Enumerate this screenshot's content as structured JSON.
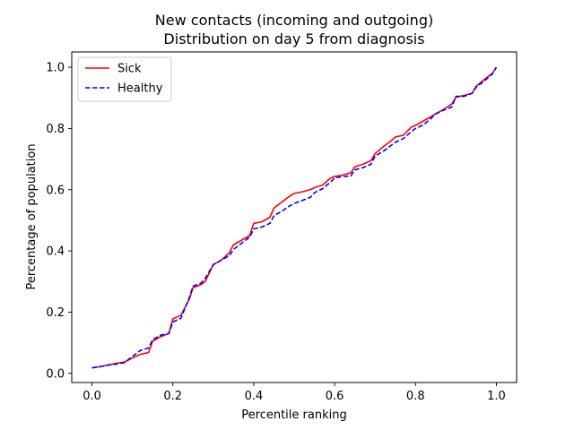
{
  "chart_data": {
    "type": "line",
    "title_line1": "New contacts (incoming and outgoing)",
    "title_line2": "Distribution on day 5 from diagnosis",
    "xlabel": "Percentile ranking",
    "ylabel": "Percentage of population",
    "xlim": [
      -0.05,
      1.05
    ],
    "ylim": [
      -0.03,
      1.05
    ],
    "xticks": [
      0.0,
      0.2,
      0.4,
      0.6,
      0.8,
      1.0
    ],
    "xtick_labels": [
      "0.0",
      "0.2",
      "0.4",
      "0.6",
      "0.8",
      "1.0"
    ],
    "yticks": [
      0.0,
      0.2,
      0.4,
      0.6,
      0.8,
      1.0
    ],
    "ytick_labels": [
      "0.0",
      "0.2",
      "0.4",
      "0.6",
      "0.8",
      "1.0"
    ],
    "grid": false,
    "legend_position": "top-left",
    "series": [
      {
        "name": "Sick",
        "color": "#ff0000",
        "style": "solid",
        "points": [
          [
            0.0,
            0.018
          ],
          [
            0.02,
            0.022
          ],
          [
            0.04,
            0.027
          ],
          [
            0.06,
            0.033
          ],
          [
            0.08,
            0.037
          ],
          [
            0.1,
            0.05
          ],
          [
            0.12,
            0.062
          ],
          [
            0.14,
            0.068
          ],
          [
            0.15,
            0.105
          ],
          [
            0.17,
            0.12
          ],
          [
            0.19,
            0.13
          ],
          [
            0.2,
            0.178
          ],
          [
            0.22,
            0.19
          ],
          [
            0.24,
            0.24
          ],
          [
            0.25,
            0.28
          ],
          [
            0.27,
            0.29
          ],
          [
            0.28,
            0.3
          ],
          [
            0.3,
            0.355
          ],
          [
            0.32,
            0.37
          ],
          [
            0.34,
            0.395
          ],
          [
            0.35,
            0.42
          ],
          [
            0.37,
            0.435
          ],
          [
            0.39,
            0.45
          ],
          [
            0.4,
            0.49
          ],
          [
            0.42,
            0.495
          ],
          [
            0.44,
            0.51
          ],
          [
            0.45,
            0.54
          ],
          [
            0.47,
            0.56
          ],
          [
            0.49,
            0.58
          ],
          [
            0.5,
            0.588
          ],
          [
            0.52,
            0.593
          ],
          [
            0.54,
            0.6
          ],
          [
            0.55,
            0.607
          ],
          [
            0.57,
            0.615
          ],
          [
            0.59,
            0.638
          ],
          [
            0.6,
            0.643
          ],
          [
            0.62,
            0.648
          ],
          [
            0.64,
            0.655
          ],
          [
            0.65,
            0.675
          ],
          [
            0.67,
            0.683
          ],
          [
            0.69,
            0.695
          ],
          [
            0.7,
            0.718
          ],
          [
            0.72,
            0.74
          ],
          [
            0.74,
            0.76
          ],
          [
            0.75,
            0.772
          ],
          [
            0.77,
            0.778
          ],
          [
            0.79,
            0.805
          ],
          [
            0.8,
            0.81
          ],
          [
            0.82,
            0.825
          ],
          [
            0.84,
            0.84
          ],
          [
            0.85,
            0.848
          ],
          [
            0.87,
            0.863
          ],
          [
            0.89,
            0.88
          ],
          [
            0.9,
            0.902
          ],
          [
            0.92,
            0.908
          ],
          [
            0.94,
            0.915
          ],
          [
            0.95,
            0.938
          ],
          [
            0.97,
            0.96
          ],
          [
            0.99,
            0.98
          ],
          [
            1.0,
            1.0
          ]
        ]
      },
      {
        "name": "Healthy",
        "color": "#0000ff",
        "style": "dashed",
        "points": [
          [
            0.0,
            0.018
          ],
          [
            0.02,
            0.022
          ],
          [
            0.04,
            0.027
          ],
          [
            0.06,
            0.03
          ],
          [
            0.08,
            0.035
          ],
          [
            0.1,
            0.055
          ],
          [
            0.12,
            0.075
          ],
          [
            0.14,
            0.083
          ],
          [
            0.15,
            0.11
          ],
          [
            0.17,
            0.125
          ],
          [
            0.19,
            0.13
          ],
          [
            0.2,
            0.168
          ],
          [
            0.22,
            0.18
          ],
          [
            0.24,
            0.245
          ],
          [
            0.25,
            0.285
          ],
          [
            0.27,
            0.295
          ],
          [
            0.28,
            0.31
          ],
          [
            0.3,
            0.355
          ],
          [
            0.32,
            0.37
          ],
          [
            0.34,
            0.385
          ],
          [
            0.35,
            0.405
          ],
          [
            0.37,
            0.425
          ],
          [
            0.39,
            0.445
          ],
          [
            0.4,
            0.472
          ],
          [
            0.42,
            0.478
          ],
          [
            0.44,
            0.49
          ],
          [
            0.45,
            0.515
          ],
          [
            0.47,
            0.53
          ],
          [
            0.49,
            0.548
          ],
          [
            0.5,
            0.555
          ],
          [
            0.52,
            0.565
          ],
          [
            0.54,
            0.575
          ],
          [
            0.55,
            0.59
          ],
          [
            0.57,
            0.603
          ],
          [
            0.59,
            0.625
          ],
          [
            0.6,
            0.638
          ],
          [
            0.62,
            0.643
          ],
          [
            0.64,
            0.645
          ],
          [
            0.65,
            0.665
          ],
          [
            0.67,
            0.672
          ],
          [
            0.69,
            0.683
          ],
          [
            0.7,
            0.71
          ],
          [
            0.72,
            0.725
          ],
          [
            0.74,
            0.745
          ],
          [
            0.75,
            0.755
          ],
          [
            0.77,
            0.767
          ],
          [
            0.79,
            0.79
          ],
          [
            0.8,
            0.8
          ],
          [
            0.82,
            0.812
          ],
          [
            0.84,
            0.835
          ],
          [
            0.85,
            0.848
          ],
          [
            0.87,
            0.86
          ],
          [
            0.89,
            0.87
          ],
          [
            0.9,
            0.905
          ],
          [
            0.92,
            0.905
          ],
          [
            0.94,
            0.915
          ],
          [
            0.95,
            0.935
          ],
          [
            0.97,
            0.955
          ],
          [
            0.99,
            0.978
          ],
          [
            1.0,
            1.0
          ]
        ]
      }
    ]
  }
}
